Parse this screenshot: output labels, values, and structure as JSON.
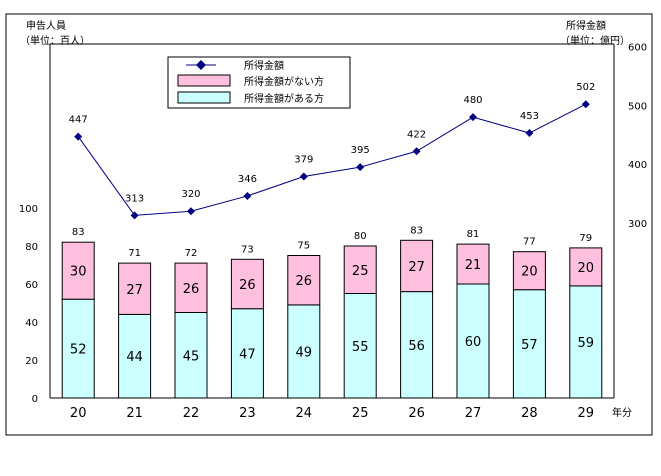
{
  "chart_data": {
    "type": "bar",
    "categories": [
      "20",
      "21",
      "22",
      "23",
      "24",
      "25",
      "26",
      "27",
      "28",
      "29"
    ],
    "x_unit": "年分",
    "left_axis": {
      "title_line1": "申告人員",
      "title_line2": "（単位：百人）",
      "ticks": [
        "0",
        "20",
        "40",
        "60",
        "80",
        "100"
      ],
      "ylim": [
        0,
        100
      ]
    },
    "right_axis": {
      "title_line1": "所得金額",
      "title_line2": "（単位：億円）",
      "ticks": [
        "300",
        "400",
        "500",
        "600"
      ],
      "ylim": [
        300,
        600
      ]
    },
    "series": [
      {
        "name": "所得金額がある方",
        "values": [
          52,
          44,
          45,
          47,
          49,
          55,
          56,
          60,
          57,
          59
        ],
        "color": "#ccffff"
      },
      {
        "name": "所得金額がない方",
        "values": [
          30,
          27,
          26,
          26,
          26,
          25,
          27,
          21,
          20,
          20
        ],
        "color": "#ffc0e0"
      }
    ],
    "totals": [
      83,
      71,
      72,
      73,
      75,
      80,
      83,
      81,
      77,
      79
    ],
    "line_series": {
      "name": "所得金額",
      "values": [
        447,
        313,
        320,
        346,
        379,
        395,
        422,
        480,
        453,
        502
      ],
      "color": "#000080"
    },
    "legend": {
      "position": "top-left",
      "items": [
        "所得金額",
        "所得金額がない方",
        "所得金額がある方"
      ]
    }
  }
}
